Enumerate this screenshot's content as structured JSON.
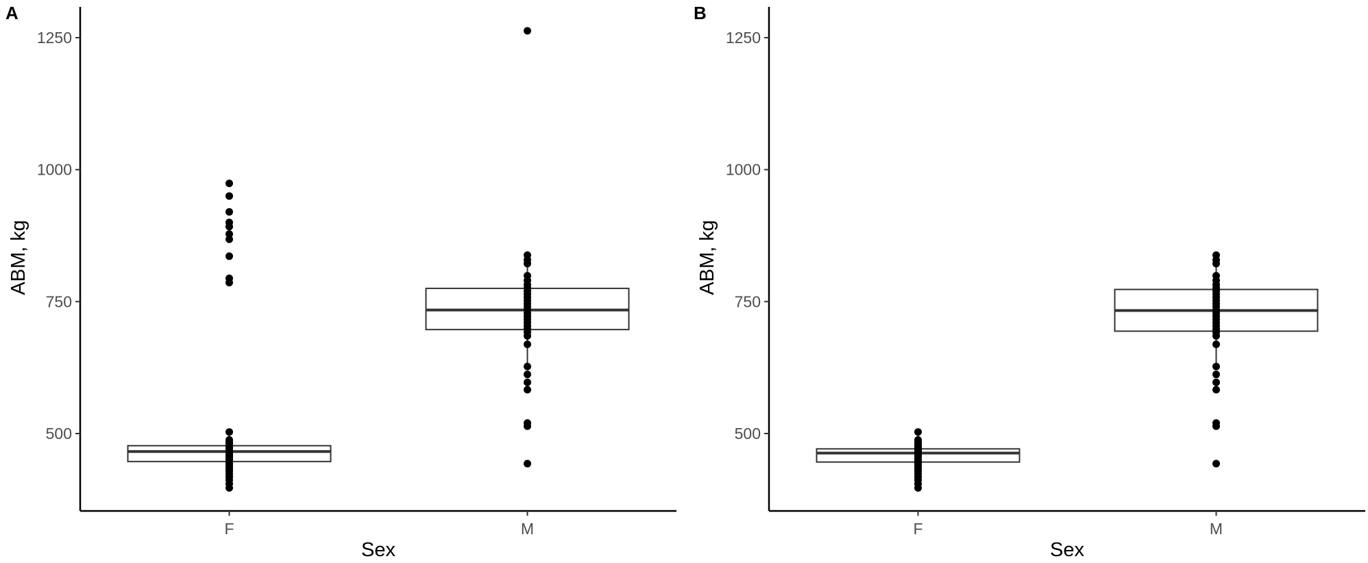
{
  "chart_data": [
    {
      "type": "box",
      "panel_label": "A",
      "xlabel": "Sex",
      "ylabel": "ABM, kg",
      "categories": [
        "F",
        "M"
      ],
      "yticks": [
        500,
        750,
        1000,
        1250
      ],
      "ylim": [
        350,
        1310
      ],
      "boxes": [
        {
          "category": "F",
          "whisker_low": 397,
          "q1": 447,
          "median": 466,
          "q3": 477,
          "whisker_high": 503,
          "points": [
            397,
            405,
            412,
            418,
            423,
            428,
            432,
            436,
            440,
            444,
            447,
            450,
            453,
            456,
            459,
            462,
            465,
            468,
            470,
            472,
            474,
            476,
            478,
            481,
            484,
            488,
            503,
            786,
            794,
            836,
            868,
            878,
            892,
            900,
            920,
            950,
            974
          ]
        },
        {
          "category": "M",
          "whisker_low": 628,
          "q1": 697,
          "median": 734,
          "q3": 775,
          "whisker_high": 838,
          "points": [
            443,
            514,
            520,
            583,
            597,
            612,
            627,
            669,
            685,
            692,
            698,
            704,
            710,
            716,
            722,
            728,
            734,
            740,
            746,
            752,
            758,
            764,
            770,
            776,
            782,
            790,
            799,
            822,
            829,
            838,
            1263
          ]
        }
      ]
    },
    {
      "type": "box",
      "panel_label": "B",
      "xlabel": "Sex",
      "ylabel": "ABM, kg",
      "categories": [
        "F",
        "M"
      ],
      "yticks": [
        500,
        750,
        1000,
        1250
      ],
      "ylim": [
        350,
        1310
      ],
      "boxes": [
        {
          "category": "F",
          "whisker_low": 397,
          "q1": 446,
          "median": 463,
          "q3": 471,
          "whisker_high": 503,
          "points": [
            397,
            405,
            412,
            418,
            423,
            428,
            432,
            436,
            440,
            444,
            447,
            450,
            453,
            456,
            459,
            462,
            465,
            468,
            470,
            472,
            474,
            476,
            478,
            481,
            484,
            488,
            503
          ]
        },
        {
          "category": "M",
          "whisker_low": 628,
          "q1": 694,
          "median": 733,
          "q3": 773,
          "whisker_high": 838,
          "points": [
            443,
            514,
            520,
            583,
            597,
            612,
            627,
            669,
            685,
            692,
            698,
            704,
            710,
            716,
            722,
            728,
            734,
            740,
            746,
            752,
            758,
            764,
            770,
            776,
            782,
            790,
            799,
            822,
            829,
            838
          ]
        }
      ]
    }
  ]
}
